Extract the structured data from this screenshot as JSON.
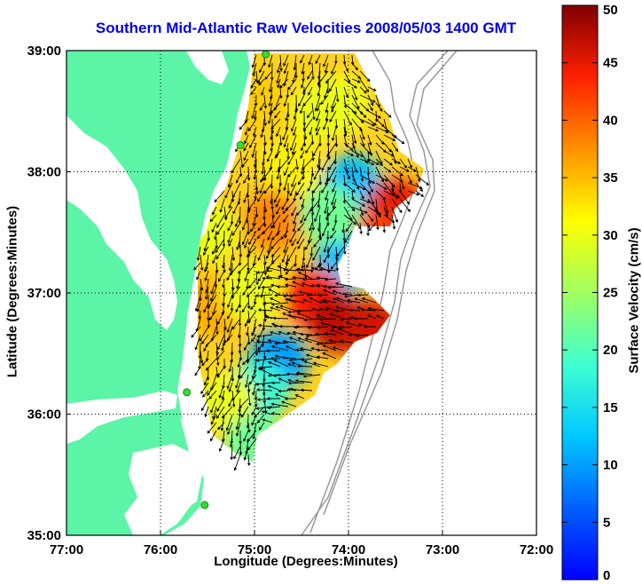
{
  "title": "Southern Mid-Atlantic Raw Velocities 2008/05/03 1400 GMT",
  "xlabel": "Longitude (Degrees:Minutes)",
  "ylabel": "Latitude (Degrees:Minutes)",
  "colorbar_label": "Surface Velocity (cm/s)",
  "colors": {
    "land": "#5cf5a8",
    "title": "#0000ee",
    "sites": "#33dd33",
    "arrows": "#000000",
    "bathymetry": "#999999"
  },
  "chart_data": {
    "type": "map-vector-field",
    "xlim": [
      -77,
      -72
    ],
    "ylim": [
      35,
      39
    ],
    "x_ticks": [
      {
        "value": -77,
        "label": "77:00"
      },
      {
        "value": -76,
        "label": "76:00"
      },
      {
        "value": -75,
        "label": "75:00"
      },
      {
        "value": -74,
        "label": "74:00"
      },
      {
        "value": -73,
        "label": "73:00"
      },
      {
        "value": -72,
        "label": "72:00"
      }
    ],
    "y_ticks": [
      {
        "value": 35,
        "label": "35:00"
      },
      {
        "value": 36,
        "label": "36:00"
      },
      {
        "value": 37,
        "label": "37:00"
      },
      {
        "value": 38,
        "label": "38:00"
      },
      {
        "value": 39,
        "label": "39:00"
      }
    ],
    "grid": true,
    "colorbar": {
      "range": [
        0,
        50
      ],
      "ticks": [
        0,
        5,
        10,
        15,
        20,
        25,
        30,
        35,
        40,
        45,
        50
      ],
      "colormap": "jet"
    },
    "radar_sites": [
      {
        "lon": -74.88,
        "lat": 38.97
      },
      {
        "lon": -75.15,
        "lat": 38.22
      },
      {
        "lon": -75.72,
        "lat": 36.18
      },
      {
        "lon": -75.53,
        "lat": 35.25
      }
    ],
    "current_regions": [
      {
        "lon": -74.6,
        "lat": 38.05,
        "speed": 32
      },
      {
        "lon": -74.3,
        "lat": 38.5,
        "speed": 30
      },
      {
        "lon": -74.1,
        "lat": 38.55,
        "speed": 30
      },
      {
        "lon": -73.95,
        "lat": 37.9,
        "speed": 12
      },
      {
        "lon": -73.5,
        "lat": 37.7,
        "speed": 45
      },
      {
        "lon": -73.7,
        "lat": 37.45,
        "speed": 42
      },
      {
        "lon": -74.05,
        "lat": 37.25,
        "speed": 12
      },
      {
        "lon": -74.35,
        "lat": 36.95,
        "speed": 44
      },
      {
        "lon": -74.1,
        "lat": 36.75,
        "speed": 47
      },
      {
        "lon": -73.75,
        "lat": 36.7,
        "speed": 46
      },
      {
        "lon": -74.75,
        "lat": 36.45,
        "speed": 10
      },
      {
        "lon": -74.95,
        "lat": 36.2,
        "speed": 18
      },
      {
        "lon": -75.3,
        "lat": 36.1,
        "speed": 30
      },
      {
        "lon": -75.4,
        "lat": 36.9,
        "speed": 36
      },
      {
        "lon": -75.05,
        "lat": 37.0,
        "speed": 30
      },
      {
        "lon": -74.8,
        "lat": 37.6,
        "speed": 38
      },
      {
        "lon": -75.0,
        "lat": 38.6,
        "speed": 34
      },
      {
        "lon": -75.0,
        "lat": 35.75,
        "speed": 22
      },
      {
        "lon": -75.5,
        "lat": 37.5,
        "speed": 30
      },
      {
        "lon": -74.2,
        "lat": 37.65,
        "speed": 22
      }
    ]
  }
}
